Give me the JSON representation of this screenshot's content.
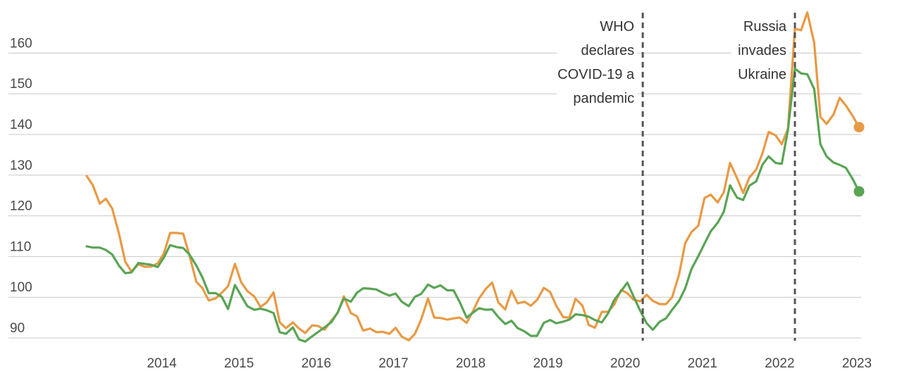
{
  "chart_data": {
    "type": "line",
    "title": "",
    "xlabel": "",
    "ylabel": "",
    "ylim": [
      88,
      170
    ],
    "xlim": [
      2012.9,
      2023.2
    ],
    "y_ticks": [
      90,
      100,
      110,
      120,
      130,
      140,
      150,
      160
    ],
    "y_tick_labels": [
      "90",
      "100",
      "110",
      "120",
      "130",
      "140",
      "150",
      "160"
    ],
    "x_ticks": [
      2014,
      2015,
      2016,
      2017,
      2018,
      2019,
      2020,
      2021,
      2022,
      2023
    ],
    "x_tick_labels": [
      "2014",
      "2015",
      "2016",
      "2017",
      "2018",
      "2019",
      "2020",
      "2021",
      "2022",
      "2023"
    ],
    "grid": true,
    "legend": "none",
    "events": [
      {
        "x": 2020.2,
        "lines": [
          "WHO",
          "declares",
          "COVID-19 a",
          "pandemic"
        ]
      },
      {
        "x": 2022.17,
        "lines": [
          "Russia",
          "invades",
          "Ukraine"
        ]
      }
    ],
    "series": [
      {
        "color": "#e89a45",
        "end_marker": true,
        "points": [
          [
            2013.0,
            129.8
          ],
          [
            2013.08,
            127.5
          ],
          [
            2013.17,
            123
          ],
          [
            2013.25,
            124.2
          ],
          [
            2013.33,
            121.8
          ],
          [
            2013.42,
            115.5
          ],
          [
            2013.5,
            108.7
          ],
          [
            2013.58,
            106.3
          ],
          [
            2013.67,
            108.1
          ],
          [
            2013.75,
            107.5
          ],
          [
            2013.83,
            107.5
          ],
          [
            2013.92,
            108.3
          ],
          [
            2014.0,
            110.8
          ],
          [
            2014.08,
            115.8
          ],
          [
            2014.17,
            115.8
          ],
          [
            2014.25,
            115.6
          ],
          [
            2014.33,
            110.3
          ],
          [
            2014.42,
            103.8
          ],
          [
            2014.5,
            102.2
          ],
          [
            2014.58,
            99.2
          ],
          [
            2014.67,
            99.7
          ],
          [
            2014.75,
            101.1
          ],
          [
            2014.83,
            102.7
          ],
          [
            2014.92,
            108.2
          ],
          [
            2015.0,
            103.7
          ],
          [
            2015.08,
            101.5
          ],
          [
            2015.17,
            100.2
          ],
          [
            2015.25,
            97.6
          ],
          [
            2015.33,
            98.7
          ],
          [
            2015.42,
            101.2
          ],
          [
            2015.5,
            93.8
          ],
          [
            2015.58,
            92.4
          ],
          [
            2015.67,
            93.8
          ],
          [
            2015.75,
            92.3
          ],
          [
            2015.83,
            91.2
          ],
          [
            2015.92,
            93.1
          ],
          [
            2016.0,
            92.9
          ],
          [
            2016.08,
            92
          ],
          [
            2016.17,
            94.3
          ],
          [
            2016.25,
            96.1
          ],
          [
            2016.33,
            100.2
          ],
          [
            2016.42,
            96.1
          ],
          [
            2016.5,
            95.3
          ],
          [
            2016.58,
            91.8
          ],
          [
            2016.67,
            92.3
          ],
          [
            2016.75,
            91.4
          ],
          [
            2016.83,
            91.5
          ],
          [
            2016.92,
            91
          ],
          [
            2017.0,
            92.5
          ],
          [
            2017.08,
            90.3
          ],
          [
            2017.17,
            89.4
          ],
          [
            2017.25,
            91
          ],
          [
            2017.33,
            94.5
          ],
          [
            2017.42,
            99.7
          ],
          [
            2017.5,
            95
          ],
          [
            2017.58,
            94.9
          ],
          [
            2017.67,
            94.5
          ],
          [
            2017.75,
            94.8
          ],
          [
            2017.83,
            95
          ],
          [
            2017.92,
            93.7
          ],
          [
            2018.0,
            96.5
          ],
          [
            2018.08,
            99.7
          ],
          [
            2018.17,
            102.1
          ],
          [
            2018.25,
            103.6
          ],
          [
            2018.33,
            98.7
          ],
          [
            2018.42,
            97
          ],
          [
            2018.5,
            101.6
          ],
          [
            2018.58,
            98.5
          ],
          [
            2018.67,
            98.9
          ],
          [
            2018.75,
            97.9
          ],
          [
            2018.83,
            99.3
          ],
          [
            2018.92,
            102.3
          ],
          [
            2019.0,
            101.3
          ],
          [
            2019.08,
            97.9
          ],
          [
            2019.17,
            95.1
          ],
          [
            2019.25,
            95
          ],
          [
            2019.33,
            99.6
          ],
          [
            2019.42,
            97.9
          ],
          [
            2019.5,
            93.2
          ],
          [
            2019.58,
            92.5
          ],
          [
            2019.67,
            96.4
          ],
          [
            2019.75,
            96.4
          ],
          [
            2019.83,
            98.2
          ],
          [
            2019.92,
            101.8
          ],
          [
            2020.0,
            101
          ],
          [
            2020.08,
            99.4
          ],
          [
            2020.17,
            99
          ],
          [
            2020.25,
            100.6
          ],
          [
            2020.33,
            99.1
          ],
          [
            2020.42,
            98.3
          ],
          [
            2020.5,
            98.3
          ],
          [
            2020.58,
            100
          ],
          [
            2020.67,
            105.5
          ],
          [
            2020.75,
            113.3
          ],
          [
            2020.83,
            116
          ],
          [
            2020.92,
            117.6
          ],
          [
            2021.0,
            124.4
          ],
          [
            2021.08,
            125.2
          ],
          [
            2021.17,
            123.3
          ],
          [
            2021.25,
            125.8
          ],
          [
            2021.33,
            133
          ],
          [
            2021.42,
            129.3
          ],
          [
            2021.5,
            125.6
          ],
          [
            2021.58,
            129.4
          ],
          [
            2021.67,
            131.4
          ],
          [
            2021.75,
            135.4
          ],
          [
            2021.83,
            140.6
          ],
          [
            2021.92,
            139.8
          ],
          [
            2022.0,
            137.6
          ],
          [
            2022.08,
            141.4
          ],
          [
            2022.17,
            166
          ],
          [
            2022.25,
            165.6
          ],
          [
            2022.33,
            170
          ],
          [
            2022.42,
            162.5
          ],
          [
            2022.5,
            144.3
          ],
          [
            2022.58,
            142.6
          ],
          [
            2022.67,
            144.9
          ],
          [
            2022.75,
            149
          ],
          [
            2022.83,
            147.1
          ],
          [
            2022.92,
            144.5
          ],
          [
            2023.0,
            141.8
          ]
        ]
      },
      {
        "color": "#5aa455",
        "end_marker": true,
        "points": [
          [
            2013.0,
            112.5
          ],
          [
            2013.08,
            112.2
          ],
          [
            2013.17,
            112.2
          ],
          [
            2013.25,
            111.6
          ],
          [
            2013.33,
            110.5
          ],
          [
            2013.42,
            107.7
          ],
          [
            2013.5,
            105.9
          ],
          [
            2013.58,
            106.1
          ],
          [
            2013.67,
            108.4
          ],
          [
            2013.75,
            108.2
          ],
          [
            2013.83,
            108
          ],
          [
            2013.92,
            107.4
          ],
          [
            2014.0,
            109.8
          ],
          [
            2014.08,
            112.8
          ],
          [
            2014.17,
            112.3
          ],
          [
            2014.25,
            112.1
          ],
          [
            2014.33,
            110.5
          ],
          [
            2014.42,
            107.8
          ],
          [
            2014.5,
            104.8
          ],
          [
            2014.58,
            101
          ],
          [
            2014.67,
            101
          ],
          [
            2014.75,
            100.1
          ],
          [
            2014.83,
            97.1
          ],
          [
            2014.92,
            103
          ],
          [
            2015.0,
            100.4
          ],
          [
            2015.08,
            97.8
          ],
          [
            2015.17,
            96.9
          ],
          [
            2015.25,
            97.2
          ],
          [
            2015.33,
            96.8
          ],
          [
            2015.42,
            96.1
          ],
          [
            2015.5,
            91.4
          ],
          [
            2015.58,
            91
          ],
          [
            2015.67,
            92.6
          ],
          [
            2015.75,
            89.6
          ],
          [
            2015.83,
            89.1
          ],
          [
            2015.92,
            90.4
          ],
          [
            2016.0,
            91.5
          ],
          [
            2016.08,
            92.6
          ],
          [
            2016.17,
            93.9
          ],
          [
            2016.25,
            96.3
          ],
          [
            2016.33,
            99.7
          ],
          [
            2016.42,
            98.9
          ],
          [
            2016.5,
            101.1
          ],
          [
            2016.58,
            102.2
          ],
          [
            2016.67,
            102.1
          ],
          [
            2016.75,
            101.9
          ],
          [
            2016.83,
            101.1
          ],
          [
            2016.92,
            100.4
          ],
          [
            2017.0,
            100.9
          ],
          [
            2017.08,
            98.9
          ],
          [
            2017.17,
            97.8
          ],
          [
            2017.25,
            100.1
          ],
          [
            2017.33,
            100.8
          ],
          [
            2017.42,
            103.1
          ],
          [
            2017.5,
            102.3
          ],
          [
            2017.58,
            102.9
          ],
          [
            2017.67,
            101.7
          ],
          [
            2017.75,
            101.7
          ],
          [
            2017.83,
            98.8
          ],
          [
            2017.92,
            95
          ],
          [
            2018.0,
            96.2
          ],
          [
            2018.08,
            97.3
          ],
          [
            2018.17,
            96.9
          ],
          [
            2018.25,
            97
          ],
          [
            2018.33,
            95.1
          ],
          [
            2018.42,
            93.4
          ],
          [
            2018.5,
            94.2
          ],
          [
            2018.58,
            92.4
          ],
          [
            2018.67,
            91.6
          ],
          [
            2018.75,
            90.5
          ],
          [
            2018.83,
            90.5
          ],
          [
            2018.92,
            93.7
          ],
          [
            2019.0,
            94.4
          ],
          [
            2019.08,
            93.6
          ],
          [
            2019.17,
            94
          ],
          [
            2019.25,
            94.5
          ],
          [
            2019.33,
            95.8
          ],
          [
            2019.42,
            95.6
          ],
          [
            2019.5,
            95.2
          ],
          [
            2019.58,
            94.4
          ],
          [
            2019.67,
            93.8
          ],
          [
            2019.75,
            96
          ],
          [
            2019.83,
            99.3
          ],
          [
            2019.92,
            101.5
          ],
          [
            2020.0,
            103.6
          ],
          [
            2020.08,
            100.2
          ],
          [
            2020.17,
            96.6
          ],
          [
            2020.25,
            93.6
          ],
          [
            2020.33,
            92
          ],
          [
            2020.42,
            94
          ],
          [
            2020.5,
            94.8
          ],
          [
            2020.58,
            96.9
          ],
          [
            2020.67,
            99.1
          ],
          [
            2020.75,
            102.2
          ],
          [
            2020.83,
            106.9
          ],
          [
            2020.92,
            110.1
          ],
          [
            2021.0,
            113.2
          ],
          [
            2021.08,
            116.2
          ],
          [
            2021.17,
            118.3
          ],
          [
            2021.25,
            121
          ],
          [
            2021.33,
            127.5
          ],
          [
            2021.42,
            124.5
          ],
          [
            2021.5,
            123.9
          ],
          [
            2021.58,
            127.4
          ],
          [
            2021.67,
            128.5
          ],
          [
            2021.75,
            132.6
          ],
          [
            2021.83,
            134.6
          ],
          [
            2021.92,
            133
          ],
          [
            2022.0,
            132.8
          ],
          [
            2022.08,
            141.2
          ],
          [
            2022.17,
            156.2
          ],
          [
            2022.25,
            155
          ],
          [
            2022.33,
            154.8
          ],
          [
            2022.42,
            151.2
          ],
          [
            2022.5,
            137.6
          ],
          [
            2022.58,
            134.6
          ],
          [
            2022.67,
            133.1
          ],
          [
            2022.75,
            132.5
          ],
          [
            2022.83,
            131.8
          ],
          [
            2022.92,
            129
          ],
          [
            2023.0,
            126
          ]
        ]
      }
    ]
  }
}
